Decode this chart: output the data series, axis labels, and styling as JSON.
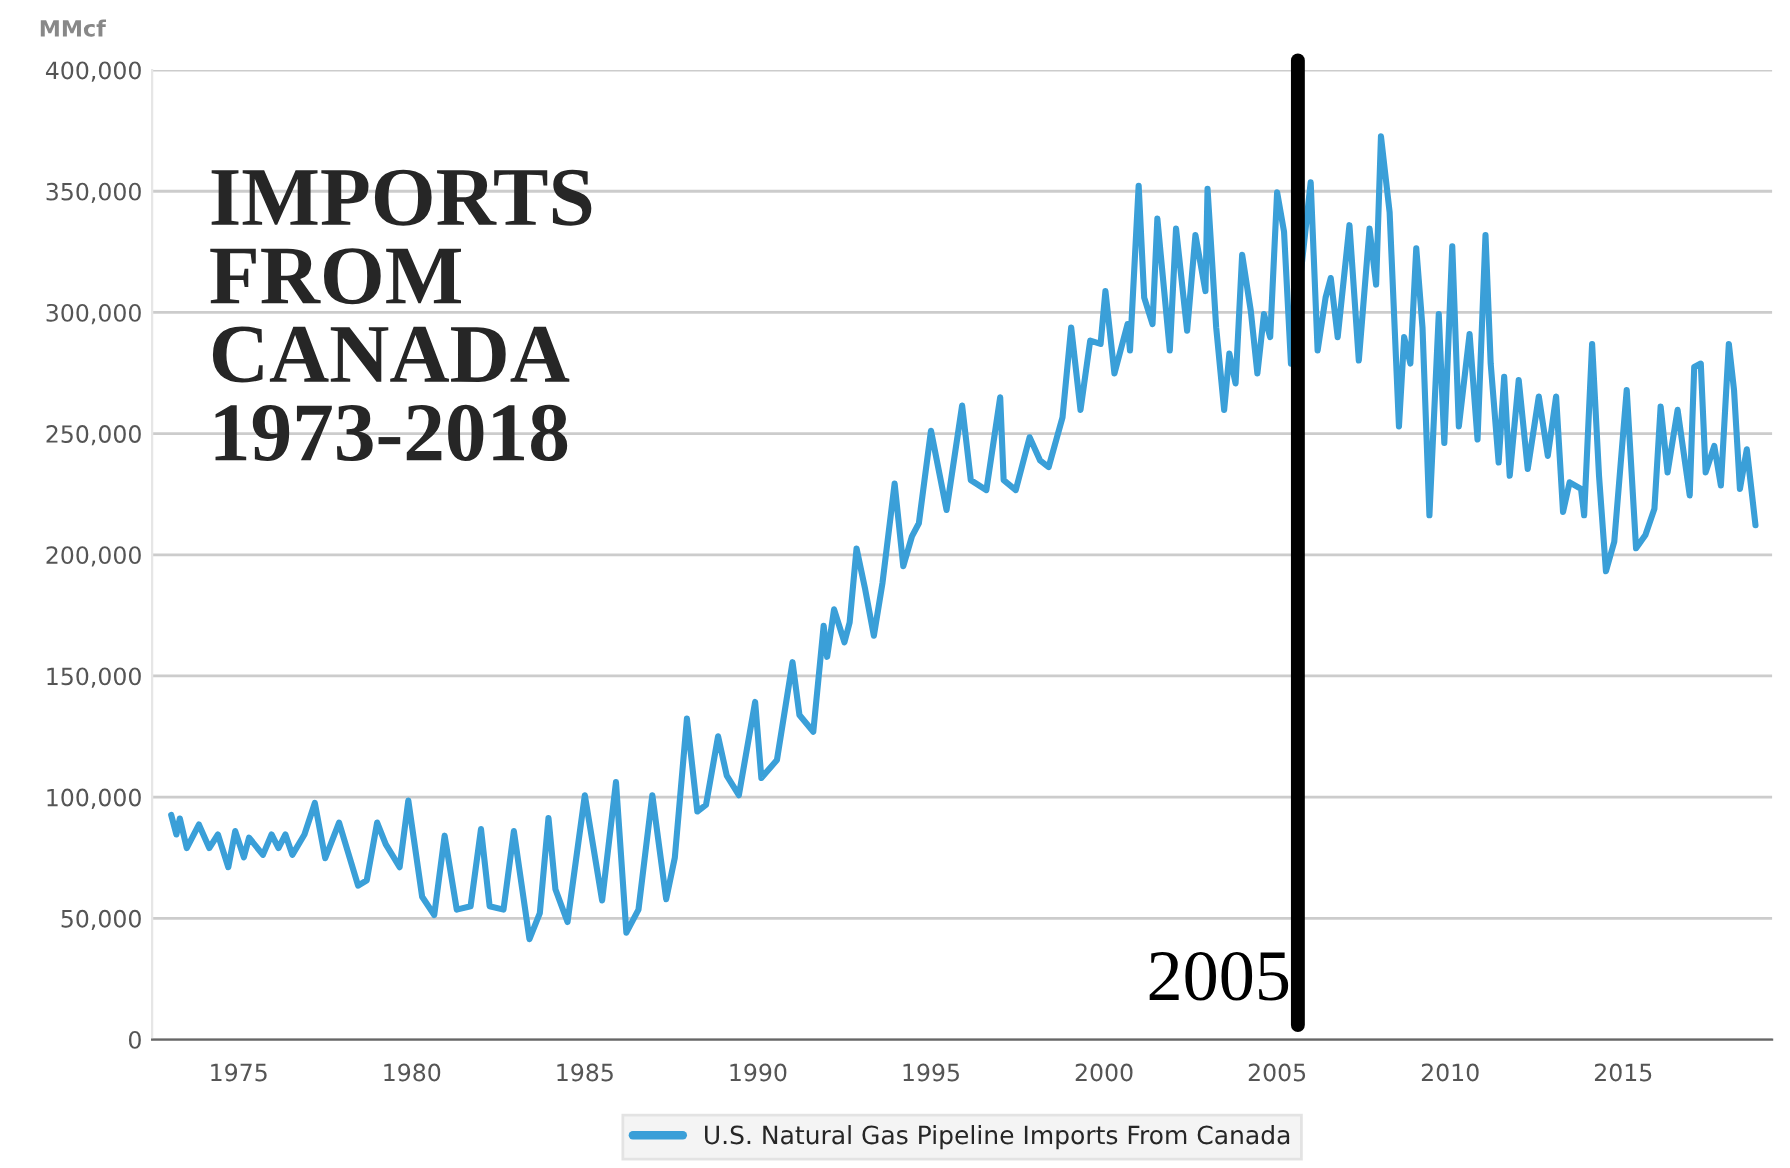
{
  "chart_data": {
    "type": "line",
    "title": "IMPORTS\nFROM\nCANADA\n1973-2018",
    "ylabel": "MMcf",
    "series": [
      {
        "name": "U.S. Natural Gas Pipeline Imports From Canada",
        "color": "#3a9fd8",
        "x": [
          1973.05,
          1973.2,
          1973.3,
          1973.5,
          1973.85,
          1974.15,
          1974.4,
          1974.7,
          1974.9,
          1975.15,
          1975.3,
          1975.7,
          1975.95,
          1976.15,
          1976.35,
          1976.55,
          1976.9,
          1977.2,
          1977.5,
          1977.9,
          1978.45,
          1978.7,
          1979.0,
          1979.25,
          1979.65,
          1979.9,
          1980.3,
          1980.65,
          1980.95,
          1981.3,
          1981.7,
          1982.0,
          1982.25,
          1982.65,
          1982.95,
          1983.4,
          1983.7,
          1983.95,
          1984.15,
          1984.5,
          1985.0,
          1985.5,
          1985.9,
          1986.2,
          1986.55,
          1986.95,
          1987.35,
          1987.6,
          1987.95,
          1988.25,
          1988.5,
          1988.85,
          1989.1,
          1989.45,
          1989.92,
          1990.1,
          1990.55,
          1991.0,
          1991.2,
          1991.6,
          1991.9,
          1992.0,
          1992.2,
          1992.5,
          1992.65,
          1992.85,
          1993.1,
          1993.35,
          1993.6,
          1993.95,
          1994.2,
          1994.45,
          1994.65,
          1995.0,
          1995.45,
          1995.9,
          1996.15,
          1996.6,
          1997.0,
          1997.1,
          1997.45,
          1997.85,
          1998.15,
          1998.4,
          1998.8,
          1999.05,
          1999.32,
          1999.6,
          1999.9,
          2000.04,
          2000.3,
          2000.68,
          2000.75,
          2001.0,
          2001.16,
          2001.4,
          2001.54,
          2001.9,
          2002.08,
          2002.4,
          2002.64,
          2002.93,
          2002.99,
          2003.24,
          2003.47,
          2003.62,
          2003.8,
          2003.99,
          2004.24,
          2004.43,
          2004.62,
          2004.8,
          2005.0,
          2005.2,
          2005.4,
          2005.97,
          2006.17,
          2006.4,
          2006.55,
          2006.75,
          2007.09,
          2007.36,
          2007.67,
          2007.86,
          2008.0,
          2008.25,
          2008.52,
          2008.67,
          2008.85,
          2009.02,
          2009.2,
          2009.4,
          2009.67,
          2009.83,
          2010.06,
          2010.25,
          2010.56,
          2010.79,
          2011.02,
          2011.17,
          2011.4,
          2011.56,
          2011.72,
          2011.98,
          2012.24,
          2012.56,
          2012.82,
          2013.06,
          2013.26,
          2013.45,
          2013.78,
          2013.87,
          2014.1,
          2014.3,
          2014.5,
          2014.74,
          2015.1,
          2015.37,
          2015.64,
          2015.9,
          2016.08,
          2016.28,
          2016.57,
          2016.92,
          2017.05,
          2017.24,
          2017.38,
          2017.63,
          2017.82,
          2018.05,
          2018.2,
          2018.37,
          2018.57,
          2018.82
        ],
        "values": [
          92700,
          84600,
          91200,
          79000,
          88700,
          79000,
          84600,
          71100,
          86000,
          75200,
          83300,
          76200,
          84600,
          79000,
          84600,
          76200,
          84600,
          97600,
          74800,
          89500,
          63500,
          65700,
          89500,
          80500,
          71100,
          98600,
          58900,
          51400,
          84100,
          53600,
          55000,
          86800,
          55000,
          53600,
          86000,
          41400,
          52200,
          91400,
          62000,
          48500,
          100800,
          57400,
          106200,
          44100,
          53600,
          100800,
          57900,
          75100,
          132400,
          94100,
          96800,
          125100,
          108900,
          100800,
          139300,
          107900,
          115300,
          155700,
          133900,
          127000,
          170700,
          157900,
          177500,
          163900,
          172100,
          202600,
          185700,
          166600,
          188500,
          229400,
          195300,
          207600,
          213000,
          251200,
          218500,
          261600,
          230800,
          226700,
          265000,
          230800,
          226700,
          248500,
          239000,
          236200,
          256700,
          293800,
          259800,
          288400,
          287000,
          308800,
          274800,
          295200,
          284300,
          352300,
          306100,
          295200,
          338700,
          284300,
          334600,
          292500,
          331900,
          308800,
          351000,
          293800,
          259800,
          283000,
          270700,
          323800,
          300600,
          274800,
          299300,
          289800,
          349600,
          333300,
          278900,
          353700,
          284300,
          306100,
          314200,
          289800,
          336000,
          280200,
          334600,
          311500,
          372700,
          341400,
          253000,
          289800,
          278900,
          326500,
          293800,
          216300,
          299300,
          246200,
          327300,
          253000,
          291100,
          247600,
          331900,
          278900,
          238100,
          273400,
          232600,
          272100,
          235400,
          265300,
          240800,
          265300,
          217700,
          229900,
          227200,
          216300,
          287000,
          232600,
          193200,
          205400,
          268000,
          202700,
          208200,
          219000,
          261200,
          234000,
          259800,
          224500,
          277500,
          278900,
          234000,
          244900,
          228600,
          287000,
          268000,
          227200,
          243500,
          212200
        ]
      }
    ],
    "xlim": [
      1972.5,
      2019.3
    ],
    "xticks": [
      1975,
      1980,
      1985,
      1990,
      1995,
      2000,
      2005,
      2010,
      2015
    ],
    "ylim": [
      0,
      400000
    ],
    "yticks": [
      {
        "value": 0,
        "label": "0"
      },
      {
        "value": 50000,
        "label": "50,000"
      },
      {
        "value": 100000,
        "label": "100,000"
      },
      {
        "value": 150000,
        "label": "150,000"
      },
      {
        "value": 200000,
        "label": "200,000"
      },
      {
        "value": 250000,
        "label": "250,000"
      },
      {
        "value": 300000,
        "label": "300,000"
      },
      {
        "value": 350000,
        "label": "350,000"
      },
      {
        "value": 400000,
        "label": "400,000"
      }
    ],
    "ref_lines": [
      {
        "axis": "x",
        "value": 2005.6,
        "color": "#000000"
      }
    ],
    "annotations": [
      "2005"
    ],
    "grid": "y",
    "legend": "bottom",
    "marker": "none",
    "line_style": "solid"
  }
}
